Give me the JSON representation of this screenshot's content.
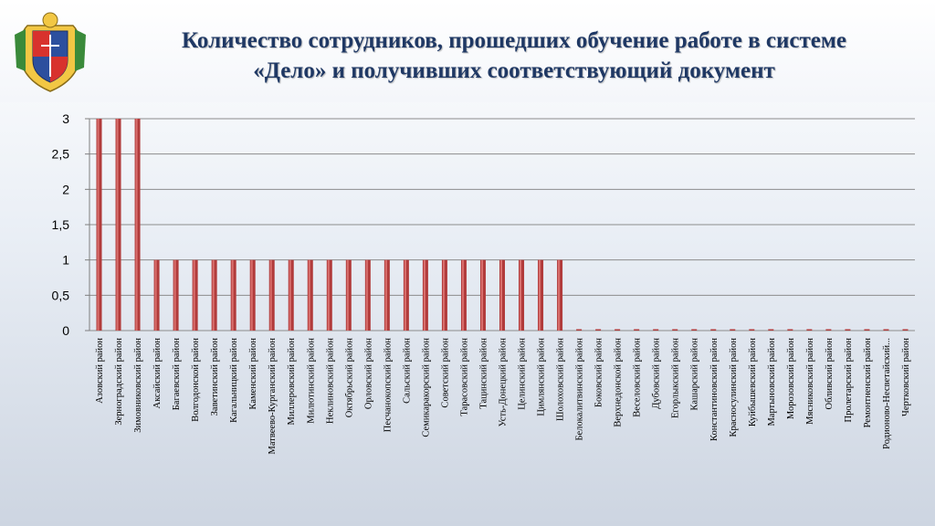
{
  "title": {
    "line1": "Количество сотрудников, прошедших обучение работе в системе",
    "line2": "«Дело» и получивших соответствующий документ"
  },
  "colors": {
    "bar": "#b13b3b",
    "bar_highlight": "#d9706e",
    "title": "#1f3864"
  },
  "emblem": {
    "icon": "coat-of-arms-icon"
  },
  "chart_data": {
    "type": "bar",
    "title": "",
    "xlabel": "",
    "ylabel": "",
    "ylim": [
      0,
      3
    ],
    "yticks": [
      0,
      0.5,
      1,
      1.5,
      2,
      2.5,
      3
    ],
    "ytick_labels": [
      "0",
      "0,5",
      "1",
      "1,5",
      "2",
      "2,5",
      "3"
    ],
    "grid": true,
    "legend": "none",
    "categories": [
      "Азовский район",
      "Зерноградский район",
      "Зимовниковский район",
      "Аксайский район",
      "Багаевский район",
      "Волгодонской район",
      "Заветинский район",
      "Кагальницкий район",
      "Каменский район",
      "Матвеево-Курганский район",
      "Миллеровский район",
      "Милютинский район",
      "Неклиновский район",
      "Октябрьский район",
      "Орловский район",
      "Песчанокопский район",
      "Сальский район",
      "Семикаракорский район",
      "Советский район",
      "Тарасовский район",
      "Тацинский район",
      "Усть-Донецкий район",
      "Целинский район",
      "Цимлянский район",
      "Шолоховский район",
      "Белокалитвинский район",
      "Боковский район",
      "Верхнедонской район",
      "Веселовский район",
      "Дубовский район",
      "Егорлыкский район",
      "Кашарский район",
      "Константиновский район",
      "Красносулинский район",
      "Куйбышевский район",
      "Мартыновский район",
      "Морозовский район",
      "Мясниковский район",
      "Обливский район",
      "Пролетарский район",
      "Ремонтненский район",
      "Родионово-Несветайский...",
      "Чертковский район"
    ],
    "values": [
      3,
      3,
      3,
      1,
      1,
      1,
      1,
      1,
      1,
      1,
      1,
      1,
      1,
      1,
      1,
      1,
      1,
      1,
      1,
      1,
      1,
      1,
      1,
      1,
      1,
      0,
      0,
      0,
      0,
      0,
      0,
      0,
      0,
      0,
      0,
      0,
      0,
      0,
      0,
      0,
      0,
      0,
      0
    ]
  }
}
